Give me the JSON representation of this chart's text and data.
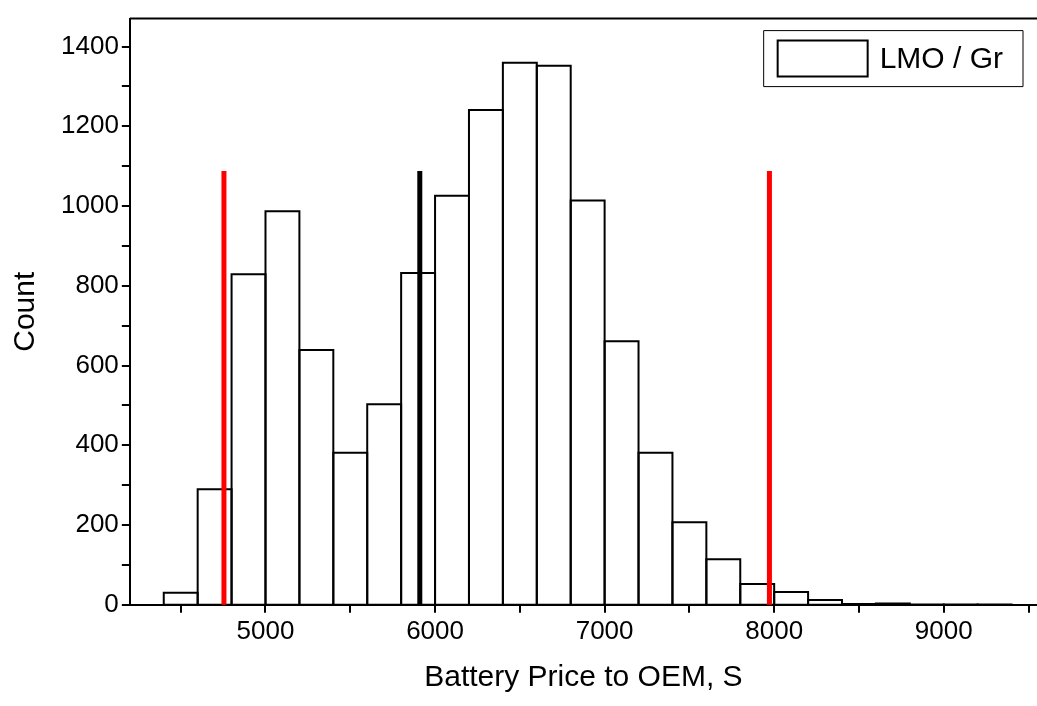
{
  "chart_data": {
    "type": "histogram",
    "xlabel": "Battery Price to OEM, S",
    "ylabel": "Count",
    "bins": [
      4400,
      4600,
      4800,
      5000,
      5200,
      5400,
      5600,
      5800,
      6000,
      6200,
      6400,
      6600,
      6800,
      7000,
      7200,
      7400,
      7600,
      7800,
      8000,
      8200,
      8400,
      8600,
      8800,
      9000,
      9200,
      9400
    ],
    "series": [
      {
        "name": "LMO / Gr",
        "color": "#000000",
        "values": [
          30,
          290,
          829,
          987,
          639,
          381,
          503,
          832,
          1026,
          1241,
          1359,
          1352,
          1014,
          661,
          381,
          207,
          114,
          52,
          32,
          12,
          2,
          3,
          1,
          1,
          1
        ]
      }
    ],
    "xlim": [
      4200,
      9550
    ],
    "xticks": [
      {
        "value": 4500,
        "label": null
      },
      5000,
      {
        "value": 5500,
        "label": null
      },
      6000,
      {
        "value": 6500,
        "label": null
      },
      7000,
      {
        "value": 7500,
        "label": null
      },
      8000,
      {
        "value": 8500,
        "label": null
      },
      9000,
      {
        "value": 9500,
        "label": null
      }
    ],
    "ylim": [
      0,
      1470
    ],
    "yticks": [
      0,
      {
        "value": 100,
        "label": null
      },
      200,
      {
        "value": 300,
        "label": null
      },
      400,
      {
        "value": 500,
        "label": null
      },
      600,
      {
        "value": 700,
        "label": null
      },
      800,
      {
        "value": 900,
        "label": null
      },
      1000,
      {
        "value": 1100,
        "label": null
      },
      1200,
      {
        "value": 1300,
        "label": null
      },
      1400
    ],
    "ref_lines": [
      {
        "axis": "x",
        "value": 4755,
        "color": "#ff0000"
      },
      {
        "axis": "x",
        "value": 5910,
        "color": "#000000"
      },
      {
        "axis": "x",
        "value": 7972,
        "color": "#ff0000"
      }
    ],
    "grid": false,
    "legend": "top right"
  }
}
